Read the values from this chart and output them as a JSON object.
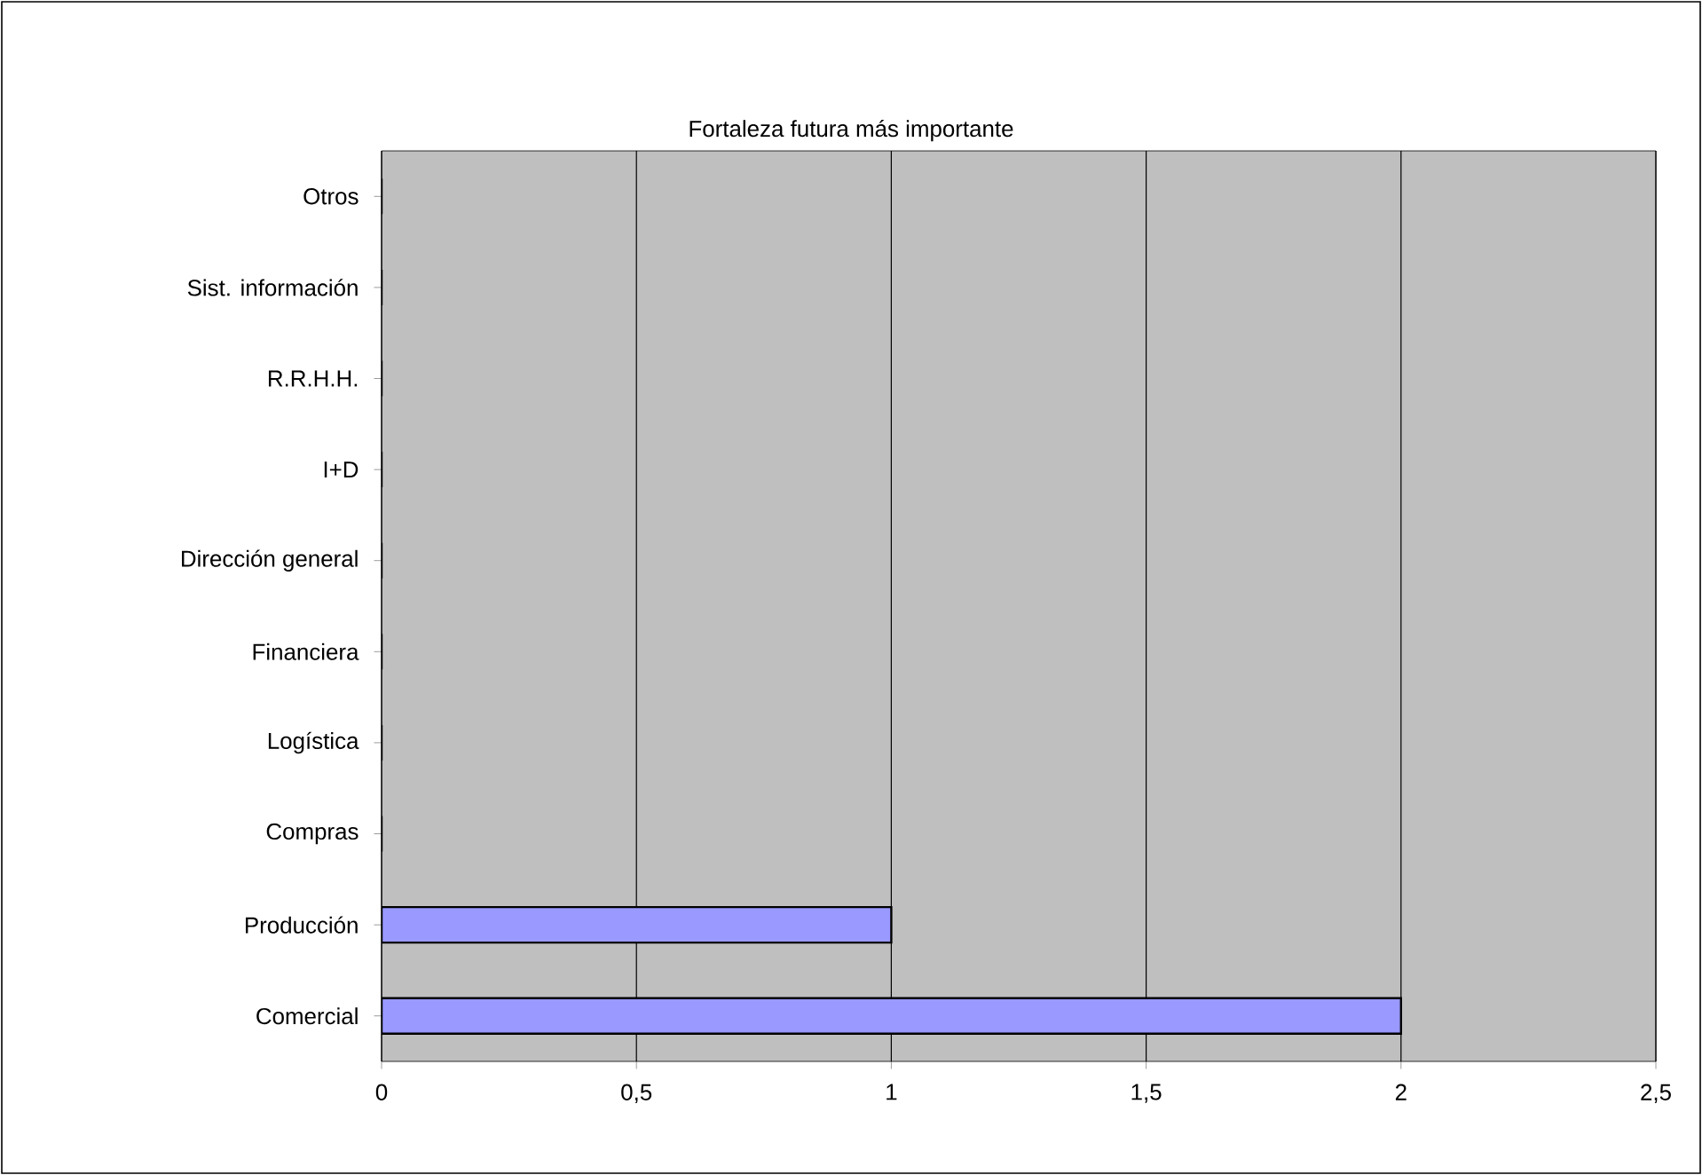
{
  "chart_data": {
    "type": "bar",
    "orientation": "horizontal",
    "title": "Fortaleza futura más importante",
    "categories": [
      "Otros",
      "Sist. información",
      "R.R.H.H.",
      "I+D",
      "Dirección general",
      "Financiera",
      "Logística",
      "Compras",
      "Producción",
      "Comercial"
    ],
    "values": [
      0,
      0,
      0,
      0,
      0,
      0,
      0,
      0,
      1,
      2
    ],
    "color": "#9999ff",
    "xlim": [
      0,
      2.5
    ],
    "xticks": [
      0,
      {
        "value": 0.5,
        "label": "0,5"
      },
      1,
      {
        "value": 1.5,
        "label": "1,5"
      },
      2,
      {
        "value": 2.5,
        "label": "2,5"
      }
    ],
    "grid": "x"
  }
}
